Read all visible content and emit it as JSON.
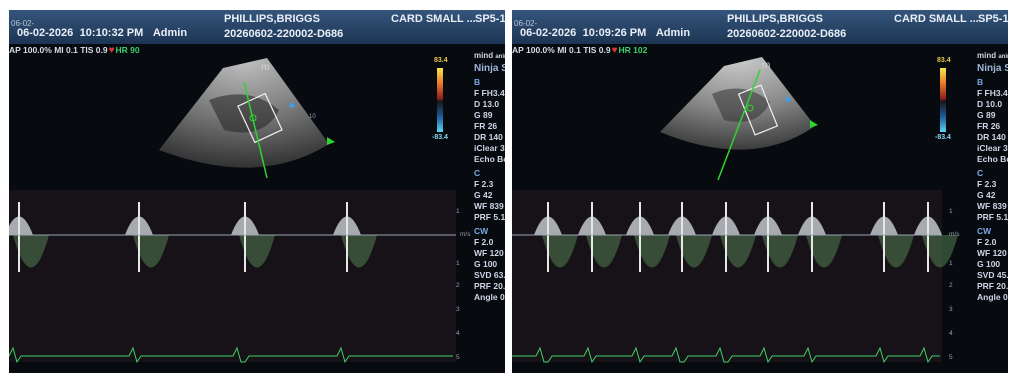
{
  "panels": [
    {
      "date_sub": "06-02-",
      "date": "06-02-2026",
      "time": "10:10:32 PM",
      "operator": "Admin",
      "patient": "PHILLIPS,BRIGGS",
      "study_id": "20260602-220002-D686",
      "exam": "CARD SMALL ...",
      "probe": "SP5-1",
      "status": "AP 100.0%  MI 0.1  TIS 0.9",
      "hr": "HR 90",
      "mode_label": "m",
      "logo": "mind",
      "logo_sub": "animal",
      "preset": "Ninja S",
      "scale_top": "83.4",
      "scale_bottom": "-83.4",
      "b_title": "B",
      "b_params": [
        "F FH3.4",
        "D 13.0",
        "G 89",
        "FR 26",
        "DR 140",
        "iClear 3",
        "Echo Bo"
      ],
      "c_title": "C",
      "c_params": [
        "F 2.3",
        "G 42",
        "WF 839",
        "PRF 5.1"
      ],
      "cw_title": "CW",
      "cw_params": [
        "F 2.0",
        "WF 120",
        "G 100",
        "SVD 63.",
        "PRF 20.",
        "Angle 0"
      ],
      "velocity_unit": "m/s",
      "ticks": [
        "1",
        "2",
        "3",
        "4",
        "5"
      ]
    },
    {
      "date_sub": "06-02-",
      "date": "06-02-2026",
      "time": "10:09:26 PM",
      "operator": "Admin",
      "patient": "PHILLIPS,BRIGGS",
      "study_id": "20260602-220002-D686",
      "exam": "CARD SMALL ...",
      "probe": "SP5-1",
      "status": "AP 100.0%  MI 0.1  TIS 0.9",
      "hr": "HR 102",
      "mode_label": "m",
      "logo": "mind",
      "logo_sub": "animal",
      "preset": "Ninja S",
      "scale_top": "83.4",
      "scale_bottom": "-83.4",
      "b_title": "B",
      "b_params": [
        "F FH3.4",
        "D 10.0",
        "G 89",
        "FR 26",
        "DR 140",
        "iClear 3",
        "Echo Bo"
      ],
      "c_title": "C",
      "c_params": [
        "F 2.3",
        "G 42",
        "WF 839",
        "PRF 5.1"
      ],
      "cw_title": "CW",
      "cw_params": [
        "F 2.0",
        "WF 120",
        "G 100",
        "SVD 45.",
        "PRF 20.",
        "Angle 0"
      ],
      "velocity_unit": "m/s",
      "ticks": [
        "1",
        "2",
        "3",
        "4",
        "5"
      ]
    }
  ],
  "colors": {
    "header": "#2a4a70",
    "hr": "#3dd068",
    "heart": "#e23636",
    "param_section": "#7ea8e8",
    "ecg": "#3dd068",
    "beam": "#2fd42f"
  },
  "icons": {
    "heart": "heart-icon",
    "logo": "mindray-logo-icon"
  }
}
